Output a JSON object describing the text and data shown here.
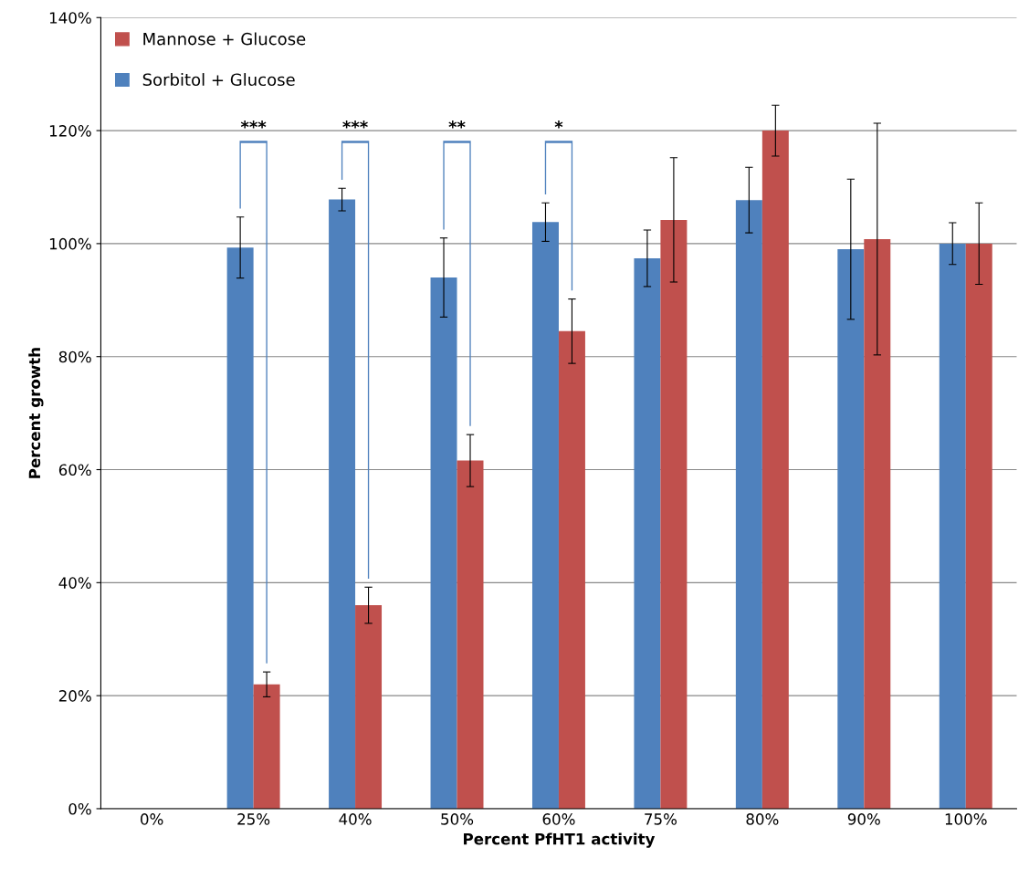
{
  "chart_data": {
    "type": "bar",
    "xlabel": "Percent PfHT1 activity",
    "ylabel": "Percent growth",
    "categories": [
      "0%",
      "25%",
      "40%",
      "50%",
      "60%",
      "75%",
      "80%",
      "90%",
      "100%"
    ],
    "series": [
      {
        "name": "Sorbitol + Glucose",
        "color": "#4f81bd",
        "values": [
          null,
          99.3,
          107.8,
          94,
          103.8,
          97.4,
          107.7,
          99,
          100
        ],
        "errors": [
          null,
          5.4,
          2,
          7,
          3.4,
          5,
          5.8,
          12.4,
          3.7
        ]
      },
      {
        "name": "Mannose + Glucose",
        "color": "#c0504d",
        "values": [
          null,
          22,
          36,
          61.6,
          84.5,
          104.2,
          120,
          100.8,
          100
        ],
        "errors": [
          null,
          2.2,
          3.2,
          4.6,
          5.7,
          11,
          4.5,
          20.5,
          7.2
        ]
      }
    ],
    "ylim": [
      0,
      140
    ],
    "yticks": [
      {
        "value": 0,
        "label": "0%"
      },
      {
        "value": 20,
        "label": "20%"
      },
      {
        "value": 40,
        "label": "40%"
      },
      {
        "value": 60,
        "label": "60%"
      },
      {
        "value": 80,
        "label": "80%"
      },
      {
        "value": 100,
        "label": "100%"
      },
      {
        "value": 120,
        "label": "120%"
      },
      {
        "value": 140,
        "label": "140%"
      }
    ],
    "annotations": [
      "***",
      "***",
      "**",
      "*"
    ],
    "grid": "y",
    "legend": "top left"
  }
}
